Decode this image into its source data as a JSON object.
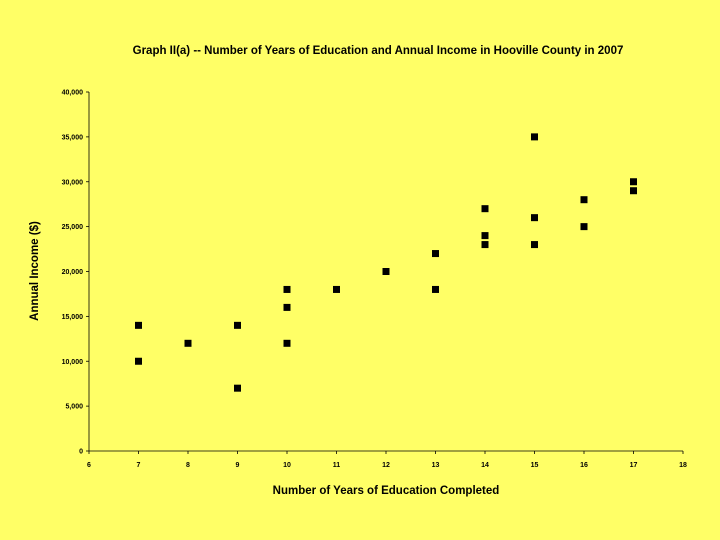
{
  "chart_data": {
    "type": "scatter",
    "title": "Graph II(a) -- Number of Years of Education and Annual Income in Hooville County in 2007",
    "xlabel": "Number of Years of Education Completed",
    "ylabel": "Annual Income ($)",
    "xlim": [
      6,
      18
    ],
    "ylim": [
      0,
      40000
    ],
    "x_ticks": [
      "6",
      "7",
      "8",
      "9",
      "10",
      "11",
      "12",
      "13",
      "14",
      "15",
      "16",
      "17",
      "18"
    ],
    "y_ticks": [
      "0",
      "5,000",
      "10,000",
      "15,000",
      "20,000",
      "25,000",
      "30,000",
      "35,000",
      "40,000"
    ],
    "grid": false,
    "marker_color": "#000000",
    "background_color": "#ffff66",
    "points": [
      {
        "x": 7,
        "y": 14000
      },
      {
        "x": 7,
        "y": 10000
      },
      {
        "x": 8,
        "y": 12000
      },
      {
        "x": 9,
        "y": 14000
      },
      {
        "x": 9,
        "y": 7000
      },
      {
        "x": 10,
        "y": 18000
      },
      {
        "x": 10,
        "y": 16000
      },
      {
        "x": 10,
        "y": 12000
      },
      {
        "x": 11,
        "y": 18000
      },
      {
        "x": 12,
        "y": 20000
      },
      {
        "x": 13,
        "y": 22000
      },
      {
        "x": 13,
        "y": 18000
      },
      {
        "x": 14,
        "y": 27000
      },
      {
        "x": 14,
        "y": 24000
      },
      {
        "x": 14,
        "y": 23000
      },
      {
        "x": 15,
        "y": 35000
      },
      {
        "x": 15,
        "y": 26000
      },
      {
        "x": 15,
        "y": 23000
      },
      {
        "x": 16,
        "y": 28000
      },
      {
        "x": 16,
        "y": 25000
      },
      {
        "x": 17,
        "y": 30000
      },
      {
        "x": 17,
        "y": 29000
      }
    ]
  }
}
